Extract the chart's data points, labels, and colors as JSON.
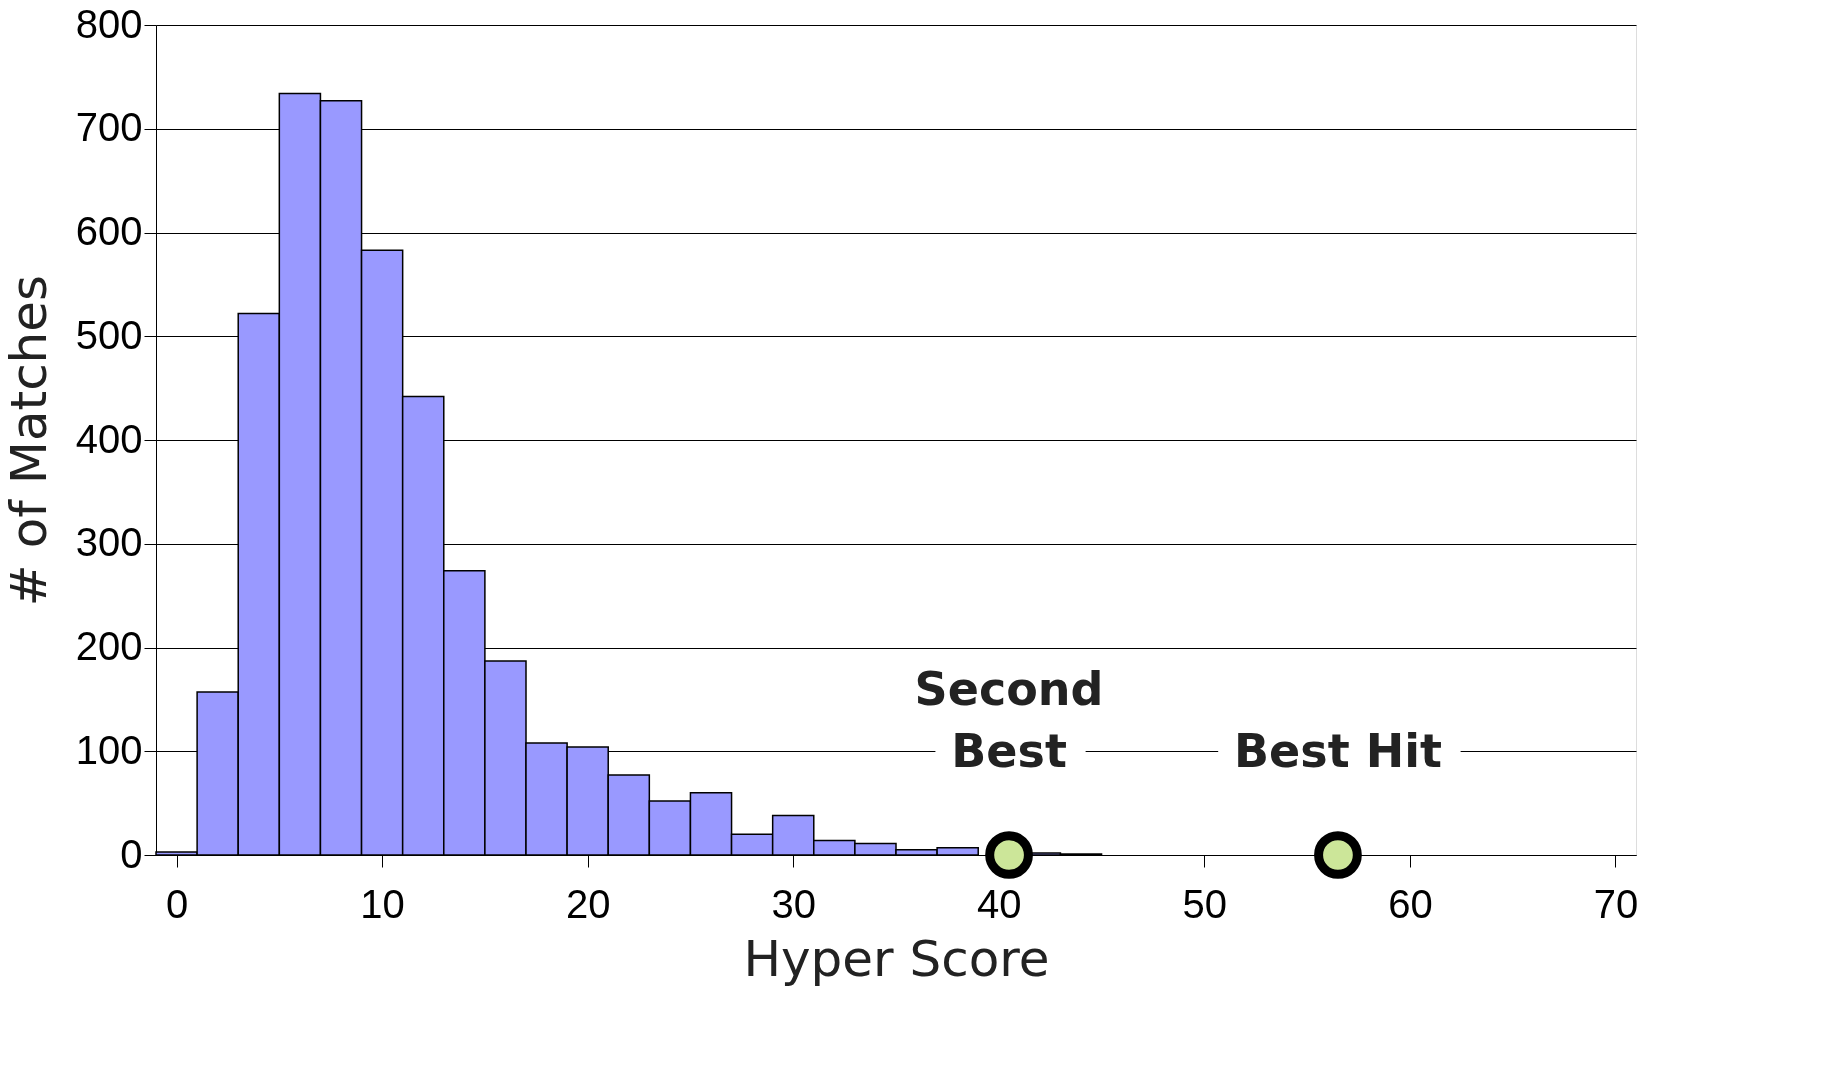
{
  "chart_data": {
    "type": "histogram",
    "xlabel": "Hyper Score",
    "ylabel": "# of Matches",
    "bins": [
      -1,
      1,
      3,
      5,
      7,
      9,
      11,
      13,
      15,
      17,
      19,
      21,
      23,
      25,
      27,
      29,
      31,
      33,
      35,
      37,
      39,
      41,
      43,
      45
    ],
    "series": [
      {
        "color": "#9999ff",
        "values": [
          3,
          157,
          522,
          734,
          727,
          583,
          442,
          274,
          187,
          108,
          104,
          77,
          52,
          60,
          20,
          38,
          14,
          11,
          5,
          7,
          null,
          2,
          1
        ]
      },
      {
        "type": "scatter",
        "color": "#cce699",
        "x": [
          40.5,
          56.5
        ],
        "values": [
          0,
          0
        ]
      }
    ],
    "xlim": [
      -1,
      71
    ],
    "xticks": [
      0,
      10,
      20,
      30,
      40,
      50,
      60,
      70
    ],
    "ylim": [
      0,
      800
    ],
    "yticks": [
      0,
      100,
      200,
      300,
      400,
      500,
      600,
      700,
      800
    ],
    "grid": "y",
    "marker": "circle",
    "annotations": [
      {
        "text": "Second\nBest",
        "x": 40.5,
        "y": 0
      },
      {
        "text": "Best Hit",
        "x": 56.5,
        "y": 0
      }
    ]
  }
}
